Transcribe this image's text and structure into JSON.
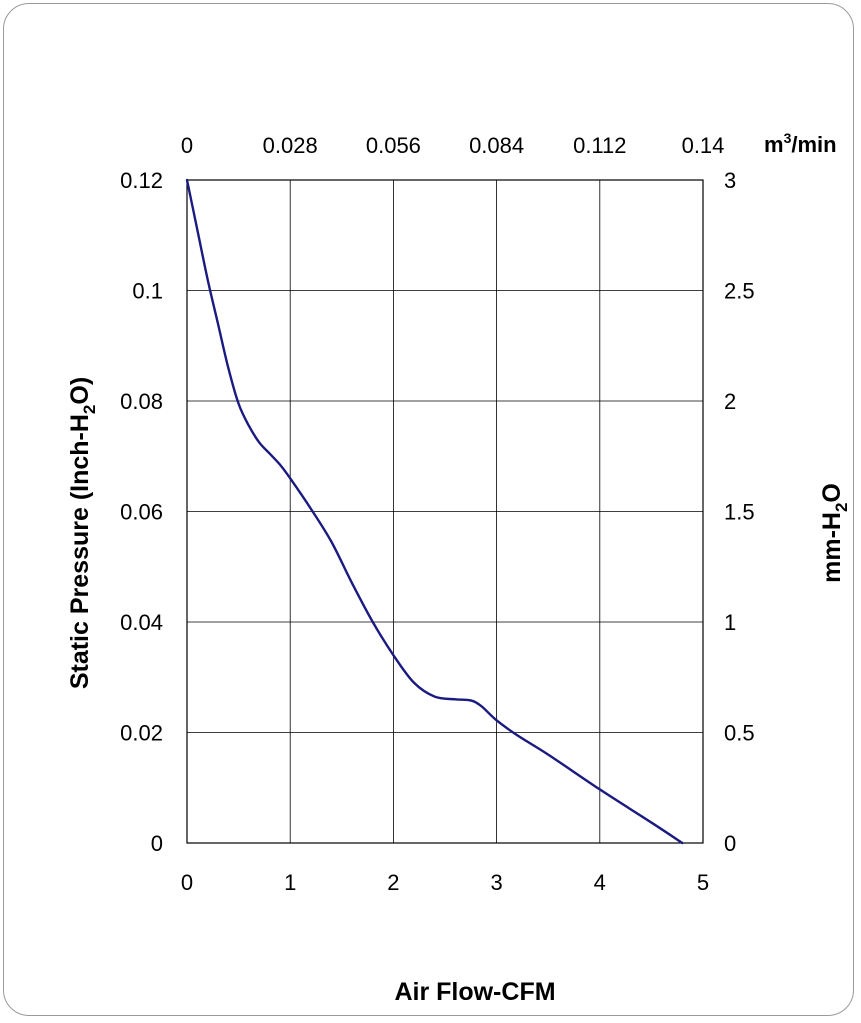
{
  "chart_data": {
    "type": "line",
    "title": "",
    "x_bottom": {
      "label": "Air Flow-CFM",
      "range": [
        0,
        5
      ],
      "ticks": [
        "0",
        "1",
        "2",
        "3",
        "4",
        "5"
      ]
    },
    "x_top": {
      "unit": "m³/min",
      "unit_base": "m",
      "unit_sup": "3",
      "unit_rest": "/min",
      "range": [
        0,
        0.14
      ],
      "ticks": [
        "0",
        "0.028",
        "0.056",
        "0.084",
        "0.112",
        "0.14"
      ]
    },
    "y_left": {
      "label": "Static Pressure (Inch-H₂O)",
      "label_pre": "Static Pressure (Inch-H",
      "label_sub": "2",
      "label_post": "O)",
      "range": [
        0,
        0.12
      ],
      "ticks": [
        "0",
        "0.02",
        "0.04",
        "0.06",
        "0.08",
        "0.1",
        "0.12"
      ]
    },
    "y_right": {
      "label": "mm-H₂O",
      "label_pre": "mm-H",
      "label_sub": "2",
      "label_post": "O",
      "range": [
        0,
        3
      ],
      "ticks": [
        "0",
        "0.5",
        "1",
        "1.5",
        "2",
        "2.5",
        "3"
      ]
    },
    "grid": true,
    "series": [
      {
        "color": "#1a1a80",
        "x": [
          0,
          0.1,
          0.2,
          0.3,
          0.4,
          0.5,
          0.6,
          0.7,
          0.8,
          0.9,
          1.0,
          1.2,
          1.4,
          1.6,
          1.8,
          2.0,
          2.2,
          2.4,
          2.6,
          2.75,
          2.85,
          3.0,
          3.2,
          3.5,
          4.0,
          4.5,
          4.8
        ],
        "y": [
          0.12,
          0.111,
          0.102,
          0.094,
          0.086,
          0.0795,
          0.0755,
          0.0725,
          0.0705,
          0.0685,
          0.066,
          0.0605,
          0.0545,
          0.047,
          0.04,
          0.034,
          0.029,
          0.0265,
          0.026,
          0.0258,
          0.0248,
          0.0222,
          0.0195,
          0.016,
          0.0097,
          0.0037,
          0.0
        ]
      }
    ]
  }
}
